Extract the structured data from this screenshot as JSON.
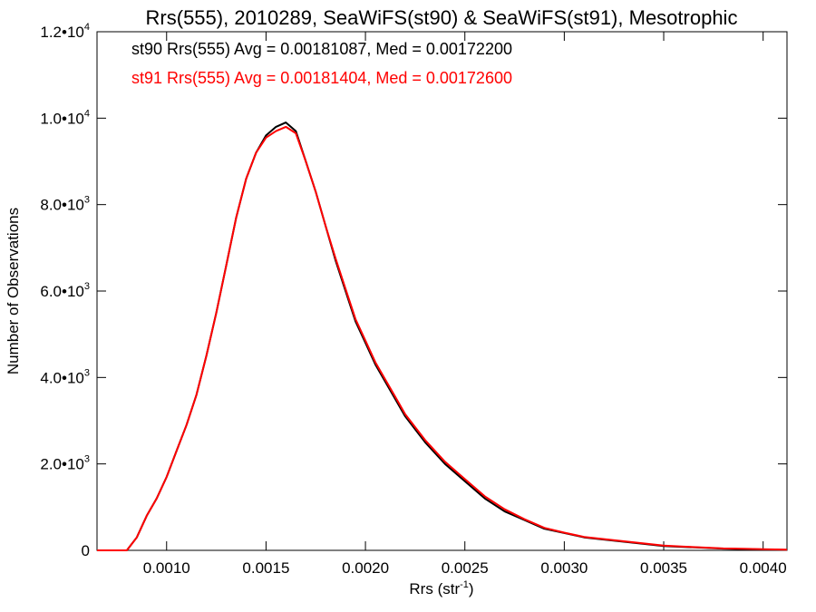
{
  "chart_data": {
    "type": "line",
    "title": "Rrs(555), 2010289, SeaWiFS(st90) & SeaWiFS(st91), Mesotrophic",
    "xlabel": "Rrs (str",
    "xlabel_sup": "-1",
    "xlabel_end": ")",
    "ylabel": "Number of Observations",
    "xlim": [
      0.00065,
      0.00412
    ],
    "ylim": [
      0,
      12000
    ],
    "x_ticks": [
      0.001,
      0.0015,
      0.002,
      0.0025,
      0.003,
      0.0035,
      0.004
    ],
    "x_tick_labels": [
      "0.0010",
      "0.0015",
      "0.0020",
      "0.0025",
      "0.0030",
      "0.0035",
      "0.0040"
    ],
    "y_ticks": [
      0,
      2000,
      4000,
      6000,
      8000,
      10000,
      12000
    ],
    "y_tick_labels": [
      {
        "base": "0",
        "sup": ""
      },
      {
        "base": "2.0•10",
        "sup": "3"
      },
      {
        "base": "4.0•10",
        "sup": "3"
      },
      {
        "base": "6.0•10",
        "sup": "3"
      },
      {
        "base": "8.0•10",
        "sup": "3"
      },
      {
        "base": "1.0•10",
        "sup": "4"
      },
      {
        "base": "1.2•10",
        "sup": "4"
      }
    ],
    "grid": false,
    "legend": "top-left",
    "series": [
      {
        "name": "st90",
        "label": "st90 Rrs(555) Avg = 0.00181087, Med = 0.00172200",
        "color": "#000000",
        "x": [
          0.00065,
          0.00075,
          0.0008,
          0.00085,
          0.0009,
          0.00095,
          0.001,
          0.00105,
          0.0011,
          0.00115,
          0.0012,
          0.00125,
          0.0013,
          0.00135,
          0.0014,
          0.00145,
          0.0015,
          0.00155,
          0.0016,
          0.00165,
          0.0017,
          0.00175,
          0.0018,
          0.00185,
          0.0019,
          0.00195,
          0.002,
          0.00205,
          0.0021,
          0.00215,
          0.0022,
          0.00225,
          0.0023,
          0.0024,
          0.0025,
          0.0026,
          0.0027,
          0.0028,
          0.0029,
          0.003,
          0.0031,
          0.0032,
          0.0033,
          0.0034,
          0.0035,
          0.0036,
          0.0037,
          0.0038,
          0.0039,
          0.004,
          0.00412
        ],
        "y": [
          0,
          0,
          0,
          300,
          800,
          1200,
          1700,
          2300,
          2900,
          3600,
          4500,
          5500,
          6600,
          7700,
          8600,
          9200,
          9600,
          9800,
          9900,
          9700,
          9000,
          8300,
          7500,
          6700,
          6000,
          5300,
          4800,
          4300,
          3900,
          3500,
          3100,
          2800,
          2500,
          2000,
          1600,
          1200,
          900,
          700,
          500,
          400,
          300,
          250,
          200,
          150,
          100,
          80,
          60,
          40,
          30,
          20,
          10
        ]
      },
      {
        "name": "st91",
        "label": "st91 Rrs(555) Avg = 0.00181404, Med = 0.00172600",
        "color": "#ff0000",
        "x": [
          0.00065,
          0.00075,
          0.0008,
          0.00085,
          0.0009,
          0.00095,
          0.001,
          0.00105,
          0.0011,
          0.00115,
          0.0012,
          0.00125,
          0.0013,
          0.00135,
          0.0014,
          0.00145,
          0.0015,
          0.00155,
          0.0016,
          0.00165,
          0.0017,
          0.00175,
          0.0018,
          0.00185,
          0.0019,
          0.00195,
          0.002,
          0.00205,
          0.0021,
          0.00215,
          0.0022,
          0.00225,
          0.0023,
          0.0024,
          0.0025,
          0.0026,
          0.0027,
          0.0028,
          0.0029,
          0.003,
          0.0031,
          0.0032,
          0.0033,
          0.0034,
          0.0035,
          0.0036,
          0.0037,
          0.0038,
          0.0039,
          0.004,
          0.00412
        ],
        "y": [
          0,
          0,
          0,
          300,
          800,
          1200,
          1700,
          2300,
          2900,
          3600,
          4500,
          5500,
          6600,
          7700,
          8600,
          9200,
          9550,
          9700,
          9800,
          9650,
          9000,
          8300,
          7500,
          6750,
          6050,
          5350,
          4850,
          4350,
          3950,
          3550,
          3150,
          2850,
          2550,
          2050,
          1650,
          1250,
          950,
          720,
          520,
          410,
          310,
          260,
          210,
          160,
          110,
          85,
          65,
          45,
          35,
          25,
          15
        ]
      }
    ]
  }
}
